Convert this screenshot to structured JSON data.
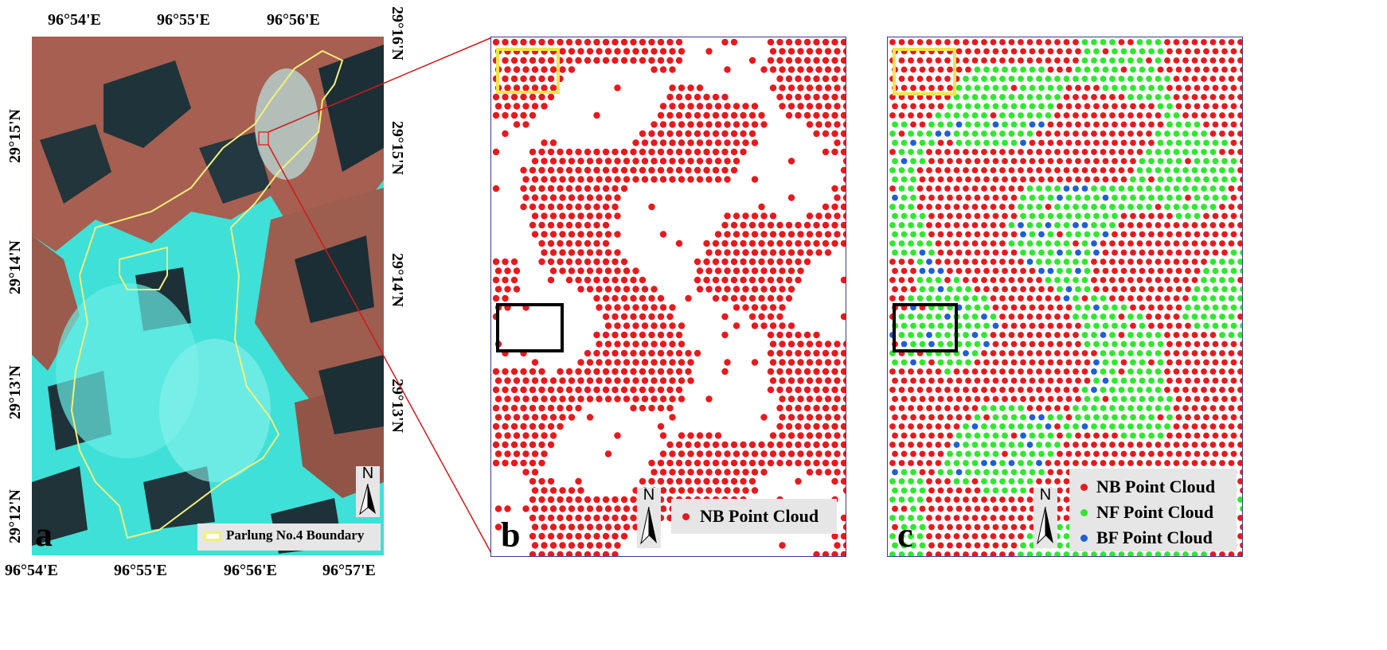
{
  "panel_a": {
    "letter": "a",
    "top_ticks": [
      "96°54'E",
      "96°55'E",
      "96°56'E"
    ],
    "bottom_ticks": [
      "96°54'E",
      "96°55'E",
      "96°56'E",
      "96°57'E"
    ],
    "left_ticks": [
      "29°15'N",
      "29°14'N",
      "29°13'N",
      "29°12'N"
    ],
    "right_ticks": [
      "29°16'N",
      "29°15'N",
      "29°14'N",
      "29°13'N"
    ],
    "legend_label": "Parlung No.4 Boundary",
    "north_label": "N",
    "colors": {
      "ice": "#3fe0d8",
      "rock": "#b86a54",
      "shadow": "#1c3038",
      "boundary": "#f3f07a",
      "inset_box": "#e03030"
    }
  },
  "panel_b": {
    "letter": "b",
    "legend": [
      {
        "label": "NB Point Cloud",
        "color": "#e8191d"
      }
    ],
    "north_label": "N"
  },
  "panel_c": {
    "letter": "c",
    "legend": [
      {
        "label": "NB Point Cloud",
        "color": "#e8191d"
      },
      {
        "label": "NF Point Cloud",
        "color": "#2ee82e"
      },
      {
        "label": "BF Point Cloud",
        "color": "#1f5fd6"
      }
    ],
    "north_label": "N"
  }
}
